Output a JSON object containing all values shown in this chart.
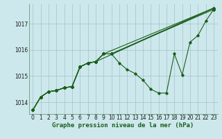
{
  "xlabel": "Graphe pression niveau de la mer (hPa)",
  "x_ticks": [
    0,
    1,
    2,
    3,
    4,
    5,
    6,
    7,
    8,
    9,
    10,
    11,
    12,
    13,
    14,
    15,
    16,
    17,
    18,
    19,
    20,
    21,
    22,
    23
  ],
  "xlim": [
    -0.5,
    23.5
  ],
  "ylim": [
    1013.55,
    1017.75
  ],
  "y_ticks": [
    1014,
    1015,
    1016,
    1017
  ],
  "bg_color": "#cde8ec",
  "grid_color": "#a8c8cc",
  "line_color": "#1a5e1a",
  "lines": [
    [
      [
        0,
        1013.7
      ],
      [
        1,
        1014.2
      ],
      [
        2,
        1014.4
      ],
      [
        3,
        1014.45
      ],
      [
        4,
        1014.55
      ],
      [
        5,
        1014.6
      ],
      [
        6,
        1015.35
      ],
      [
        7,
        1015.5
      ],
      [
        8,
        1015.55
      ],
      [
        9,
        1015.85
      ],
      [
        10,
        1015.85
      ],
      [
        11,
        1015.5
      ],
      [
        12,
        1015.25
      ],
      [
        13,
        1015.1
      ],
      [
        14,
        1014.85
      ],
      [
        15,
        1014.5
      ],
      [
        16,
        1014.35
      ],
      [
        17,
        1014.35
      ],
      [
        18,
        1015.85
      ],
      [
        19,
        1015.05
      ],
      [
        20,
        1016.3
      ],
      [
        21,
        1016.55
      ],
      [
        22,
        1017.1
      ],
      [
        23,
        1017.55
      ]
    ],
    [
      [
        0,
        1013.7
      ],
      [
        1,
        1014.2
      ],
      [
        2,
        1014.4
      ],
      [
        3,
        1014.45
      ],
      [
        4,
        1014.55
      ],
      [
        5,
        1014.6
      ],
      [
        6,
        1015.35
      ],
      [
        7,
        1015.5
      ],
      [
        8,
        1015.55
      ],
      [
        9,
        1015.85
      ],
      [
        10,
        1015.85
      ],
      [
        23,
        1017.55
      ]
    ],
    [
      [
        0,
        1013.7
      ],
      [
        1,
        1014.2
      ],
      [
        2,
        1014.4
      ],
      [
        3,
        1014.45
      ],
      [
        4,
        1014.55
      ],
      [
        5,
        1014.6
      ],
      [
        6,
        1015.35
      ],
      [
        7,
        1015.5
      ],
      [
        8,
        1015.55
      ],
      [
        9,
        1015.85
      ],
      [
        10,
        1015.85
      ],
      [
        23,
        1017.6
      ]
    ],
    [
      [
        0,
        1013.7
      ],
      [
        1,
        1014.2
      ],
      [
        2,
        1014.4
      ],
      [
        3,
        1014.45
      ],
      [
        4,
        1014.55
      ],
      [
        5,
        1014.6
      ],
      [
        6,
        1015.35
      ],
      [
        7,
        1015.5
      ],
      [
        8,
        1015.55
      ],
      [
        9,
        1015.85
      ],
      [
        23,
        1017.6
      ]
    ],
    [
      [
        0,
        1013.7
      ],
      [
        1,
        1014.2
      ],
      [
        2,
        1014.4
      ],
      [
        3,
        1014.45
      ],
      [
        4,
        1014.55
      ],
      [
        5,
        1014.6
      ],
      [
        6,
        1015.35
      ],
      [
        7,
        1015.5
      ],
      [
        8,
        1015.55
      ],
      [
        23,
        1017.6
      ]
    ]
  ],
  "xlabel_fontsize": 6.5,
  "tick_fontsize": 5.5
}
